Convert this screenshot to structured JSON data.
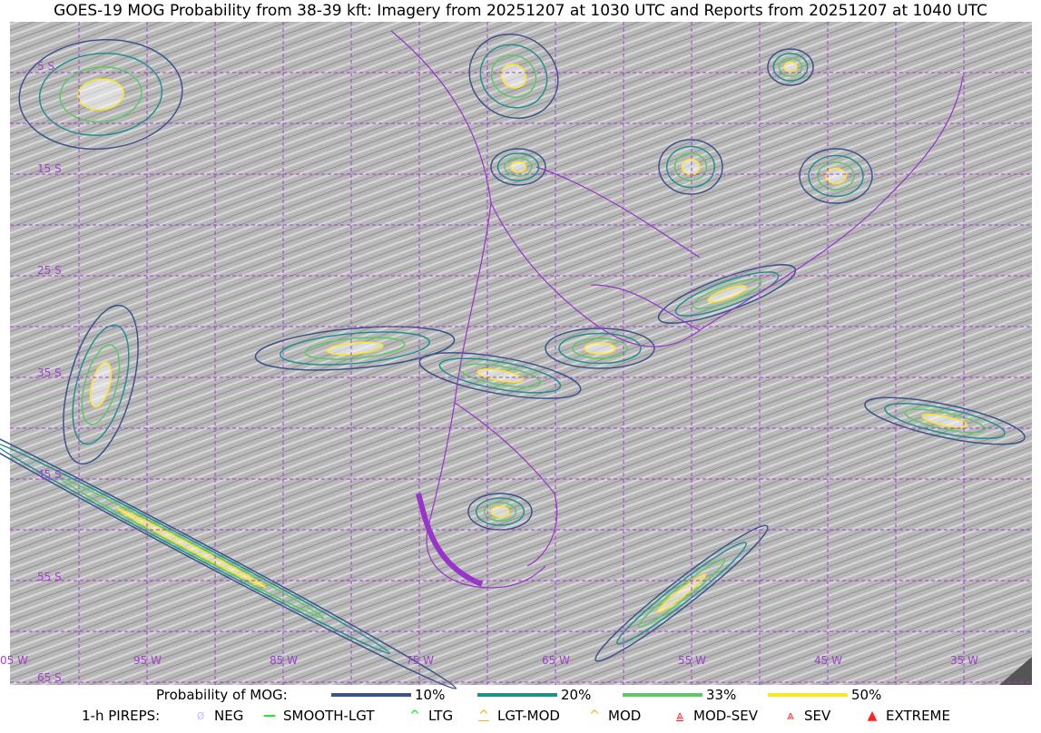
{
  "title": "GOES-19 MOG Probability from 38-39 kft: Imagery from 20251207 at 1030 UTC and Reports from 20251207 at 1040 UTC",
  "map": {
    "lat_labels": [
      "5 S",
      "15 S",
      "25 S",
      "35 S",
      "45 S",
      "55 S",
      "65 S"
    ],
    "lon_labels": [
      "05 W",
      "95 W",
      "85 W",
      "75 W",
      "65 W",
      "55 W",
      "45 W",
      "35 W"
    ],
    "gridline_color": "#a040d0",
    "border_color": "#9933cc"
  },
  "legend": {
    "probability_label": "Probability of MOG:",
    "levels": [
      {
        "label": "10%",
        "color": "#3b528b"
      },
      {
        "label": "20%",
        "color": "#21908d"
      },
      {
        "label": "33%",
        "color": "#5dc963"
      },
      {
        "label": "50%",
        "color": "#fde725"
      }
    ],
    "pireps_label": "1-h PIREPS:",
    "pireps": [
      {
        "label": "NEG",
        "icon": "neg-circle-slash-icon",
        "color": "#c8c8ff"
      },
      {
        "label": "SMOOTH-LGT",
        "icon": "line-icon",
        "color": "#00ee00"
      },
      {
        "label": "LTG",
        "icon": "caret-icon",
        "color": "#00ee00"
      },
      {
        "label": "LGT-MOD",
        "icon": "caret-underline-icon",
        "color": "#f5b400"
      },
      {
        "label": "MOD",
        "icon": "caret-icon",
        "color": "#f5b400"
      },
      {
        "label": "MOD-SEV",
        "icon": "double-caret-underline-icon",
        "color": "#ff2020"
      },
      {
        "label": "SEV",
        "icon": "double-caret-icon",
        "color": "#ff2020"
      },
      {
        "label": "EXTREME",
        "icon": "filled-triangle-icon",
        "color": "#ff2020"
      }
    ]
  }
}
